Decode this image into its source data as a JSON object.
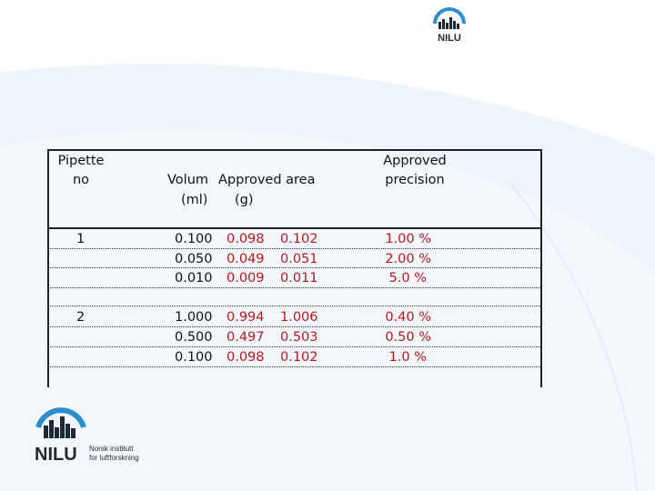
{
  "colors": {
    "accent": "#c0171c",
    "logo_blue": "#2c8ecf",
    "logo_dark": "#1d2a35"
  },
  "header": {
    "pipette": "Pipette",
    "no": "no",
    "volum": "Volum",
    "approved_area": "Approved area",
    "ml": "(ml)",
    "g": "(g)",
    "approved": "Approved",
    "precision": "precision"
  },
  "logo_top": {
    "name": "NILU"
  },
  "logo_bottom": {
    "name": "NILU",
    "line1": "Norsk institutt",
    "line2": "for luftforskning"
  },
  "rows": [
    {
      "pipette": "1",
      "entries": [
        {
          "volum": "0.100",
          "min": "0.098",
          "max": "0.102",
          "precision": "1.00 %"
        },
        {
          "volum": "0.050",
          "min": "0.049",
          "max": "0.051",
          "precision": "2.00 %"
        },
        {
          "volum": "0.010",
          "min": "0.009",
          "max": "0.011",
          "precision": "5.0 %"
        }
      ]
    },
    {
      "pipette": "2",
      "entries": [
        {
          "volum": "1.000",
          "min": "0.994",
          "max": "1.006",
          "precision": "0.40 %"
        },
        {
          "volum": "0.500",
          "min": "0.497",
          "max": "0.503",
          "precision": "0.50 %"
        },
        {
          "volum": "0.100",
          "min": "0.098",
          "max": "0.102",
          "precision": "1.0 %"
        }
      ]
    }
  ]
}
